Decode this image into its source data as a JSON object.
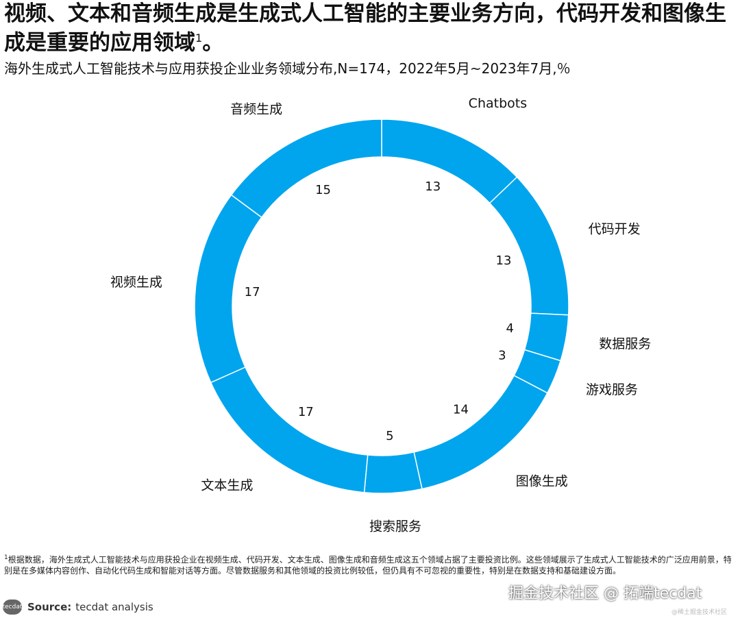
{
  "header": {
    "title": "视频、文本和音频生成是生成式人工智能的主要业务方向，代码开发和图像生成是重要的应用领域",
    "title_sup": "1",
    "title_suffix": "。",
    "subtitle": "海外生成式人工智能技术与应用获投企业业务领域分布,N=174，2022年5月~2023年7月,％"
  },
  "chart_data": {
    "type": "pie",
    "variant": "donut",
    "color": "#00A5EE",
    "separator_color": "#ffffff",
    "start": "top, clockwise",
    "categories": [
      "Chatbots",
      "代码开发",
      "数据服务",
      "游戏服务",
      "图像生成",
      "搜索服务",
      "文本生成",
      "视频生成",
      "音频生成"
    ],
    "values": [
      13,
      13,
      4,
      3,
      14,
      5,
      17,
      17,
      15
    ]
  },
  "footer": {
    "footnote_sup": "1",
    "footnote": "根据数据，海外生成式人工智能技术与应用获投企业在视频生成、代码开发、文本生成、图像生成和音频生成这五个领域占据了主要投资比例。这些领域展示了生成式人工智能技术的广泛应用前景，特别是在多媒体内容创作、自动化代码生成和智能对话等方面。尽管数据服务和其他领域的投资比例较低，但仍具有不可忽视的重要性，特别是在数据支持和基础建设方面。",
    "logo_text": "tecdat",
    "source_label": "Source:",
    "source_text": "tecdat analysis",
    "watermark": "掘金技术社区 @ 拓端tecdat",
    "watermark_small": "@稀土掘金技术社区"
  }
}
